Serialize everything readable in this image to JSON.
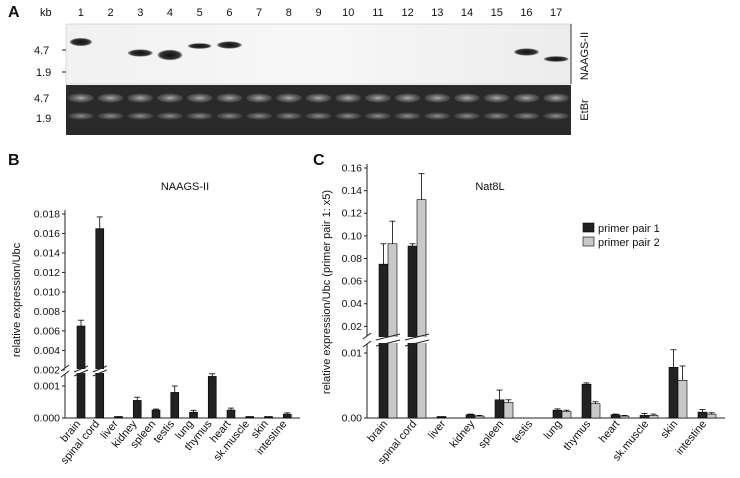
{
  "panelA": {
    "letter": "A",
    "kb_label": "kb",
    "lanes": [
      "1",
      "2",
      "3",
      "4",
      "5",
      "6",
      "7",
      "8",
      "9",
      "10",
      "11",
      "12",
      "13",
      "14",
      "15",
      "16",
      "17"
    ],
    "top_markers": [
      "4.7",
      "1.9"
    ],
    "bottom_markers": [
      "4.7",
      "1.9"
    ],
    "top_side_label": "NAAGS-II",
    "bottom_side_label": "EtBr"
  },
  "chart_data": [
    {
      "panel": "B",
      "type": "bar",
      "title": "NAAGS-II",
      "ylabel": "relative expression/Ubc",
      "categories": [
        "brain",
        "spinal cord",
        "liver",
        "kidney",
        "spleen",
        "testis",
        "lung",
        "thymus",
        "heart",
        "sk.muscle",
        "skin",
        "intestine"
      ],
      "series": [
        {
          "values": [
            0.0065,
            0.0165,
            2e-05,
            0.00055,
            0.00025,
            0.0008,
            0.00018,
            0.0013,
            0.00025,
            1e-05,
            2e-05,
            0.00012
          ],
          "errors": [
            0.0006,
            0.0012,
            1e-05,
            0.0001,
            3e-05,
            0.0002,
            6e-05,
            0.0003,
            6e-05,
            1e-05,
            1e-05,
            4e-05
          ],
          "color": "#222222"
        }
      ],
      "axis_break": {
        "from": 0.0015,
        "to": 0.0025
      },
      "yticks_lower": [
        "0.000",
        "0.001"
      ],
      "yticks_upper": [
        "0.002",
        "0.004",
        "0.006",
        "0.008",
        "0.010",
        "0.012",
        "0.014",
        "0.016",
        "0.018"
      ]
    },
    {
      "panel": "C",
      "type": "bar",
      "title": "Nat8L",
      "ylabel": "relative expression/Ubc (primer pair 1: x5)",
      "categories": [
        "brain",
        "spinal cord",
        "liver",
        "kidney",
        "spleen",
        "testis",
        "lung",
        "thymus",
        "heart",
        "sk.muscle",
        "skin",
        "intestine"
      ],
      "series": [
        {
          "name": "primer pair 1",
          "color": "#222222",
          "values": [
            0.075,
            0.091,
            0.0001,
            0.0005,
            0.0028,
            0.0,
            0.0012,
            0.0052,
            0.0005,
            0.0004,
            0.0078,
            0.0009
          ],
          "errors": [
            0.018,
            0.002,
            5e-05,
            0.0001,
            0.0015,
            0.0,
            0.0002,
            0.0002,
            0.0001,
            0.0003,
            0.0027,
            0.0004
          ]
        },
        {
          "name": "primer pair 2",
          "color": "#c8c8c8",
          "values": [
            0.093,
            0.132,
            0.0,
            0.0003,
            0.0024,
            0.0,
            0.001,
            0.0022,
            0.0003,
            0.0004,
            0.0058,
            0.0006
          ],
          "errors": [
            0.02,
            0.023,
            0.0,
            0.0001,
            0.0004,
            0.0,
            0.0002,
            0.0003,
            0.0001,
            0.0002,
            0.0022,
            0.0002
          ]
        }
      ],
      "axis_break": {
        "from": 0.012,
        "to": 0.015
      },
      "yticks_lower": [
        "0.00",
        "0.01"
      ],
      "yticks_upper": [
        "0.02",
        "0.04",
        "0.06",
        "0.08",
        "0.10",
        "0.12",
        "0.14",
        "0.16"
      ],
      "legend_position": "right"
    }
  ]
}
